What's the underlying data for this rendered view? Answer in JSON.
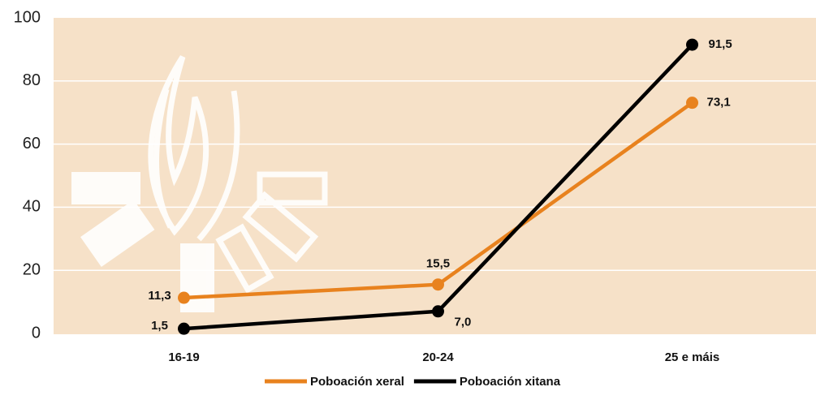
{
  "chart_data": {
    "type": "line",
    "categories": [
      "16-19",
      "20-24",
      "25 e máis"
    ],
    "series": [
      {
        "name": "Poboación xeral",
        "color": "#e8821e",
        "values": [
          11.3,
          15.5,
          73.1
        ],
        "value_labels": [
          "11,3",
          "15,5",
          "73,1"
        ]
      },
      {
        "name": "Poboación xitana",
        "color": "#000000",
        "values": [
          1.5,
          7.0,
          91.5
        ],
        "value_labels": [
          "1,5",
          "7,0",
          "91,5"
        ]
      }
    ],
    "ylim": [
      0,
      100
    ],
    "yticks": [
      0,
      20,
      40,
      60,
      80,
      100
    ],
    "grid": true
  }
}
